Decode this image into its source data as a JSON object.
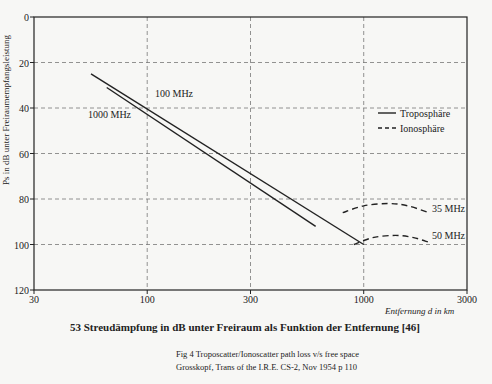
{
  "chart_data": {
    "type": "line",
    "title": "53 Streudämpfung in dB unter Freiraum als Funktion der Entfernung [46]",
    "annotations": [
      "Fig 4 Troposcatter/Ionoscatter path loss v/s free space",
      "Grosskopf, Trans of the I.R.E. CS-2, Nov 1954 p 110"
    ],
    "x_label": "Entfernung d in km",
    "y_label": "Ps in dB unter Freiraumempfangsleistung",
    "log": "x",
    "grid": true,
    "xlim": [
      30,
      3000
    ],
    "xticks": [
      30,
      100,
      300,
      1000,
      3000
    ],
    "ylim": [
      120,
      0
    ],
    "yticks": [
      0,
      20,
      40,
      60,
      80,
      100,
      120
    ],
    "legend": "right",
    "legend_items": [
      {
        "label": "Troposphäre",
        "line_style": "solid"
      },
      {
        "label": "Ionosphäre",
        "line_style": "dashed"
      }
    ],
    "series": [
      {
        "name": "100 MHz",
        "color": "#222222",
        "line_style": "solid",
        "x": [
          55,
          1000
        ],
        "values": [
          25,
          100
        ]
      },
      {
        "name": "1000 MHz",
        "color": "#222222",
        "line_style": "solid",
        "x": [
          65,
          600
        ],
        "values": [
          31,
          92
        ]
      },
      {
        "name": "35 MHz",
        "color": "#222222",
        "line_style": "dashed",
        "x": [
          800,
          1000,
          1300,
          1600,
          2000
        ],
        "values": [
          86,
          83,
          82,
          83,
          86
        ]
      },
      {
        "name": "50 MHz",
        "color": "#222222",
        "line_style": "dashed",
        "x": [
          900,
          1100,
          1400,
          1700,
          2000
        ],
        "values": [
          100,
          97,
          96,
          97,
          99
        ]
      }
    ]
  }
}
